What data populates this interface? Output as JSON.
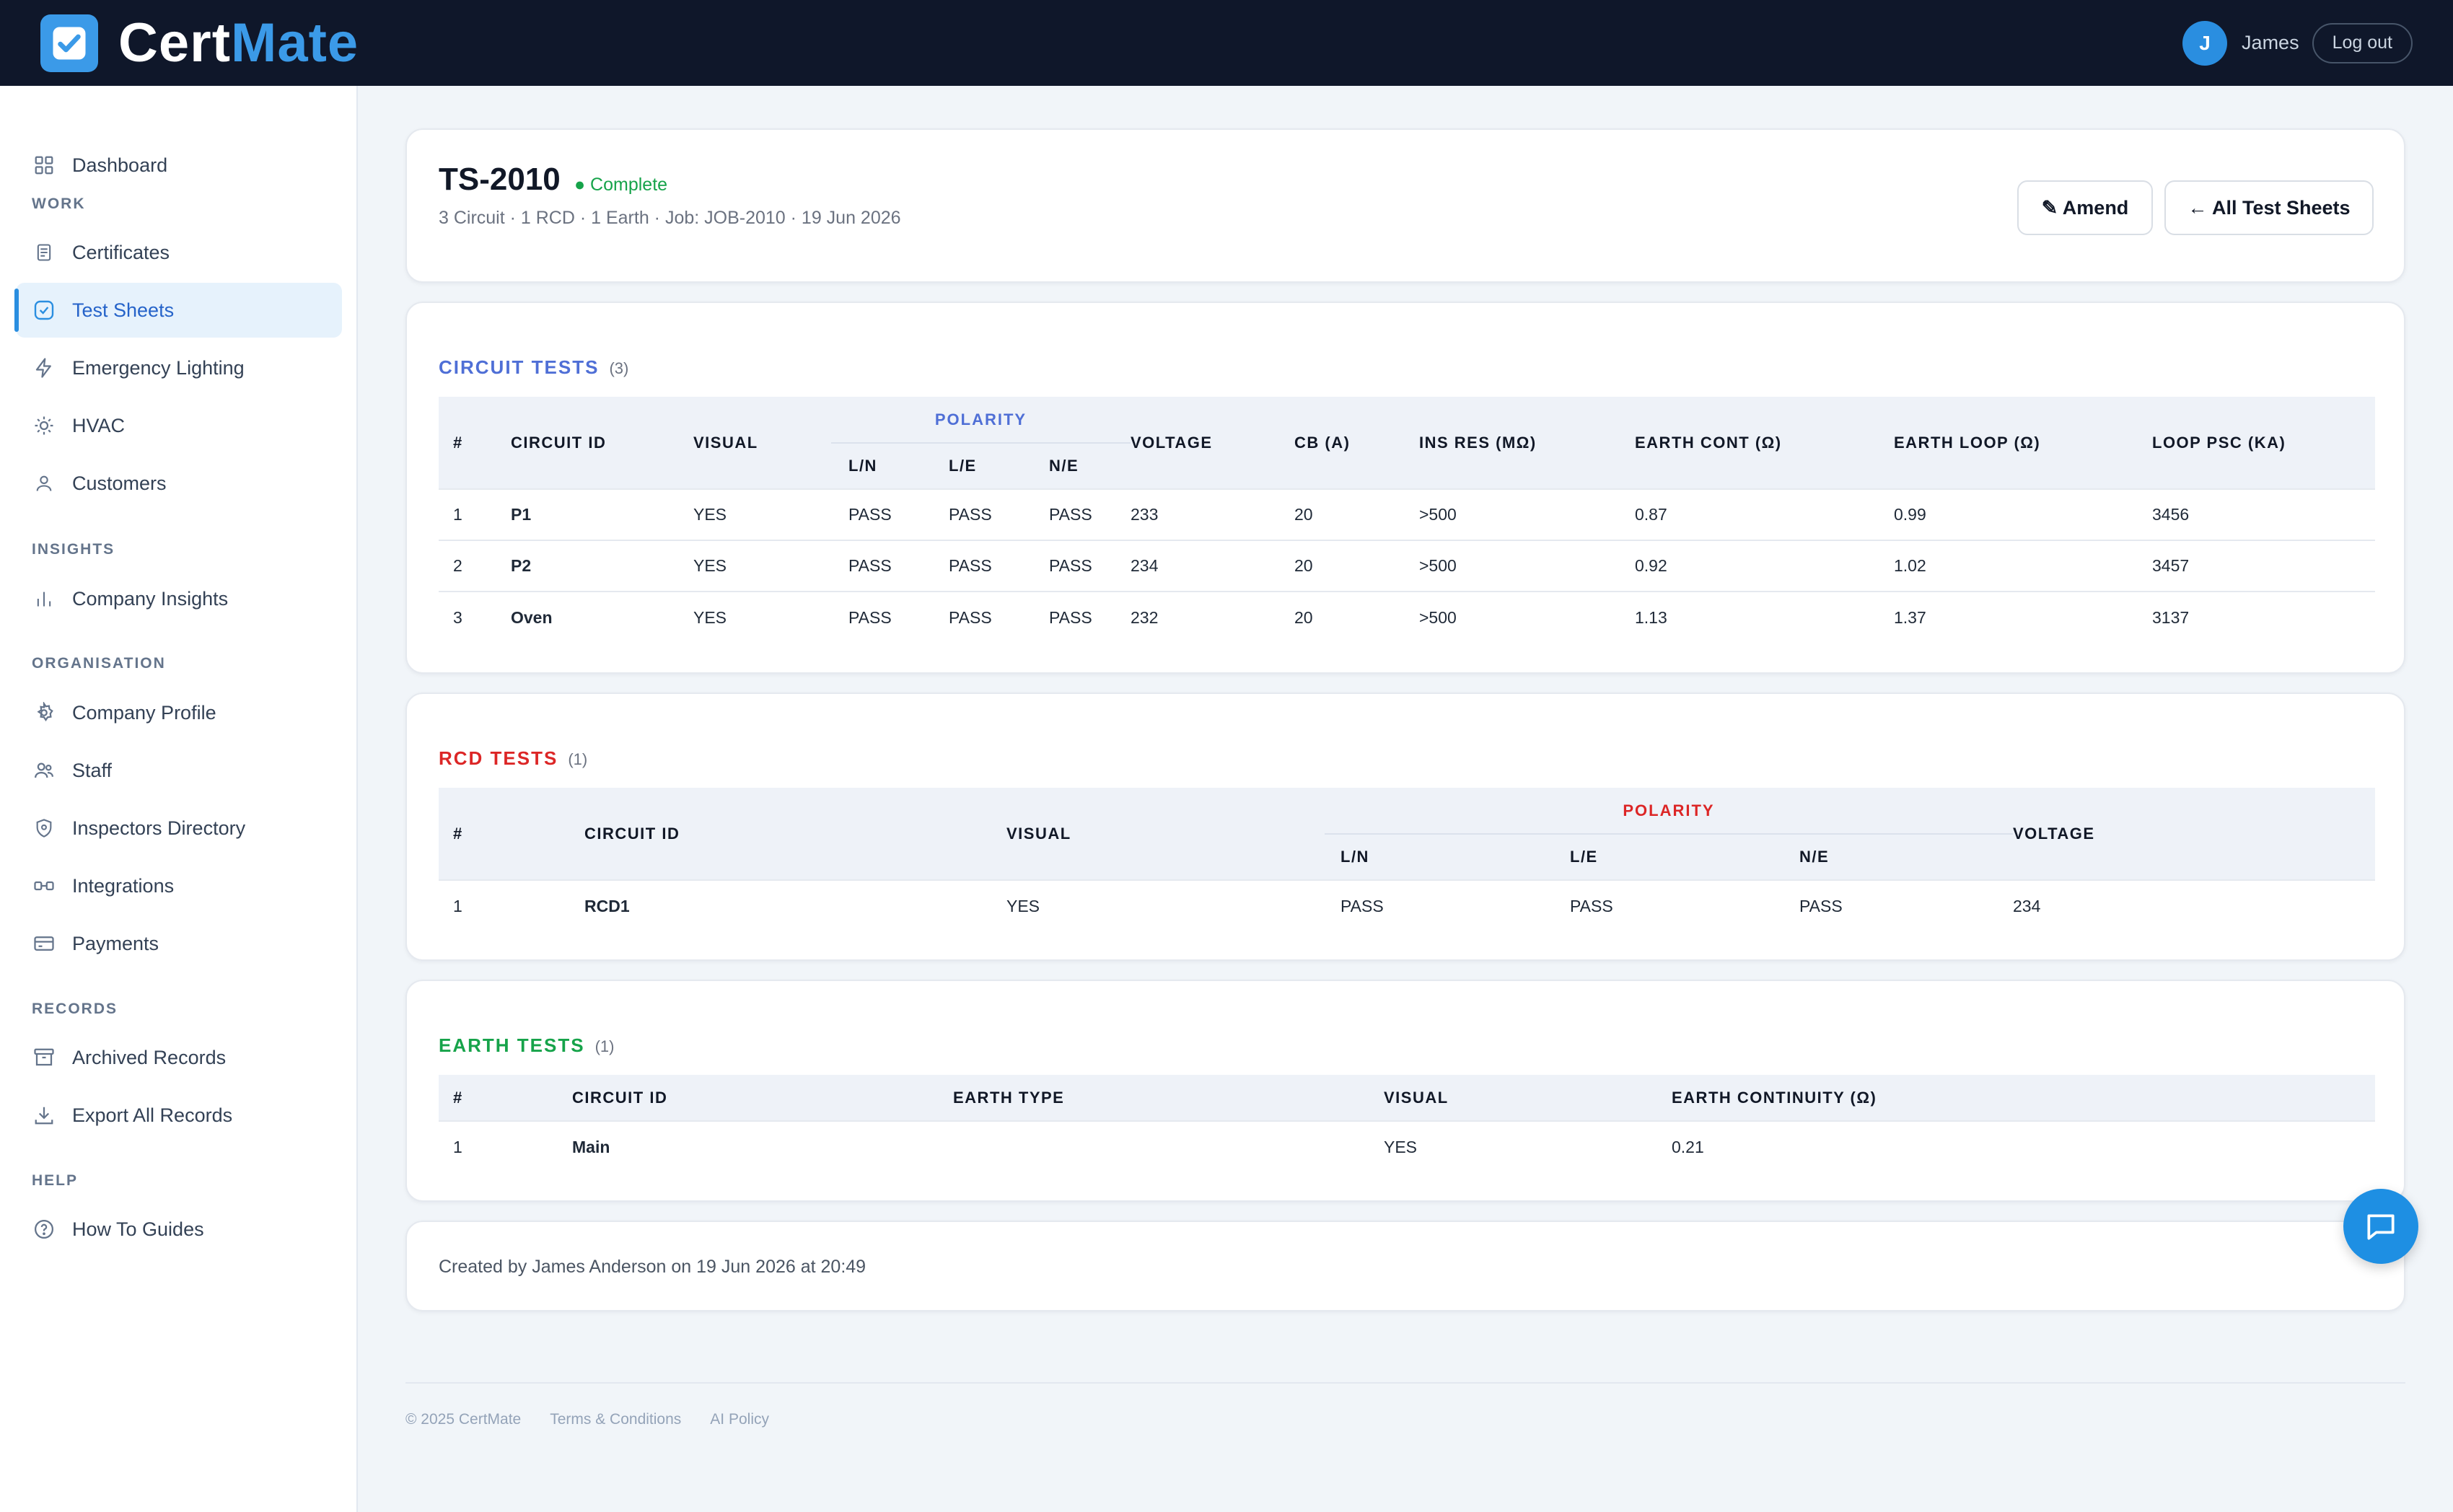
{
  "app": {
    "brand_a": "Cert",
    "brand_b": "Mate",
    "brand_color": "#3b9ae8"
  },
  "user": {
    "initial": "J",
    "name": "James",
    "logout": "Log out"
  },
  "sidebar": {
    "dashboard": "Dashboard",
    "sections": {
      "work": "WORK",
      "insights": "INSIGHTS",
      "organisation": "ORGANISATION",
      "records": "RECORDS",
      "help": "HELP"
    },
    "items": {
      "certificates": "Certificates",
      "test_sheets": "Test Sheets",
      "emergency_lighting": "Emergency Lighting",
      "hvac": "HVAC",
      "customers": "Customers",
      "company_insights": "Company Insights",
      "company_profile": "Company Profile",
      "staff": "Staff",
      "inspectors_directory": "Inspectors Directory",
      "integrations": "Integrations",
      "payments": "Payments",
      "archived_records": "Archived Records",
      "export_all_records": "Export All Records",
      "how_to_guides": "How To Guides"
    }
  },
  "header": {
    "title": "TS-2010",
    "status": "● Complete",
    "subtitle": "3 Circuit · 1 RCD · 1 Earth  ·  Job: JOB-2010  ·  19 Jun 2026",
    "amend": "✎ Amend",
    "all_sheets": "← All Test Sheets"
  },
  "circuit": {
    "title": "CIRCUIT TESTS",
    "count": "(3)",
    "color": "#4f6fd6",
    "headers": {
      "num": "#",
      "id": "CIRCUIT ID",
      "visual": "VISUAL",
      "polarity": "POLARITY",
      "ln": "L/N",
      "le": "L/E",
      "ne": "N/E",
      "voltage": "VOLTAGE",
      "cb": "CB (A)",
      "ins": "INS RES (MΩ)",
      "ec": "EARTH CONT (Ω)",
      "el": "EARTH LOOP (Ω)",
      "psc": "LOOP PSC (KA)"
    },
    "rows": [
      {
        "num": "1",
        "id": "P1",
        "visual": "YES",
        "ln": "PASS",
        "le": "PASS",
        "ne": "PASS",
        "voltage": "233",
        "cb": "20",
        "ins": ">500",
        "ec": "0.87",
        "el": "0.99",
        "psc": "3456"
      },
      {
        "num": "2",
        "id": "P2",
        "visual": "YES",
        "ln": "PASS",
        "le": "PASS",
        "ne": "PASS",
        "voltage": "234",
        "cb": "20",
        "ins": ">500",
        "ec": "0.92",
        "el": "1.02",
        "psc": "3457"
      },
      {
        "num": "3",
        "id": "Oven",
        "visual": "YES",
        "ln": "PASS",
        "le": "PASS",
        "ne": "PASS",
        "voltage": "232",
        "cb": "20",
        "ins": ">500",
        "ec": "1.13",
        "el": "1.37",
        "psc": "3137"
      }
    ]
  },
  "rcd": {
    "title": "RCD TESTS",
    "count": "(1)",
    "color": "#dc2626",
    "headers": {
      "num": "#",
      "id": "CIRCUIT ID",
      "visual": "VISUAL",
      "polarity": "POLARITY",
      "ln": "L/N",
      "le": "L/E",
      "ne": "N/E",
      "voltage": "VOLTAGE"
    },
    "rows": [
      {
        "num": "1",
        "id": "RCD1",
        "visual": "YES",
        "ln": "PASS",
        "le": "PASS",
        "ne": "PASS",
        "voltage": "234"
      }
    ]
  },
  "earth": {
    "title": "EARTH TESTS",
    "count": "(1)",
    "color": "#16a34a",
    "headers": {
      "num": "#",
      "id": "CIRCUIT ID",
      "type": "EARTH TYPE",
      "visual": "VISUAL",
      "cont": "EARTH CONTINUITY (Ω)"
    },
    "rows": [
      {
        "num": "1",
        "id": "Main",
        "type": "",
        "visual": "YES",
        "cont": "0.21"
      }
    ]
  },
  "created": "Created by James Anderson on 19 Jun 2026 at 20:49",
  "footer": {
    "copyright": "© 2025 CertMate",
    "terms": "Terms & Conditions",
    "ai": "AI Policy"
  }
}
